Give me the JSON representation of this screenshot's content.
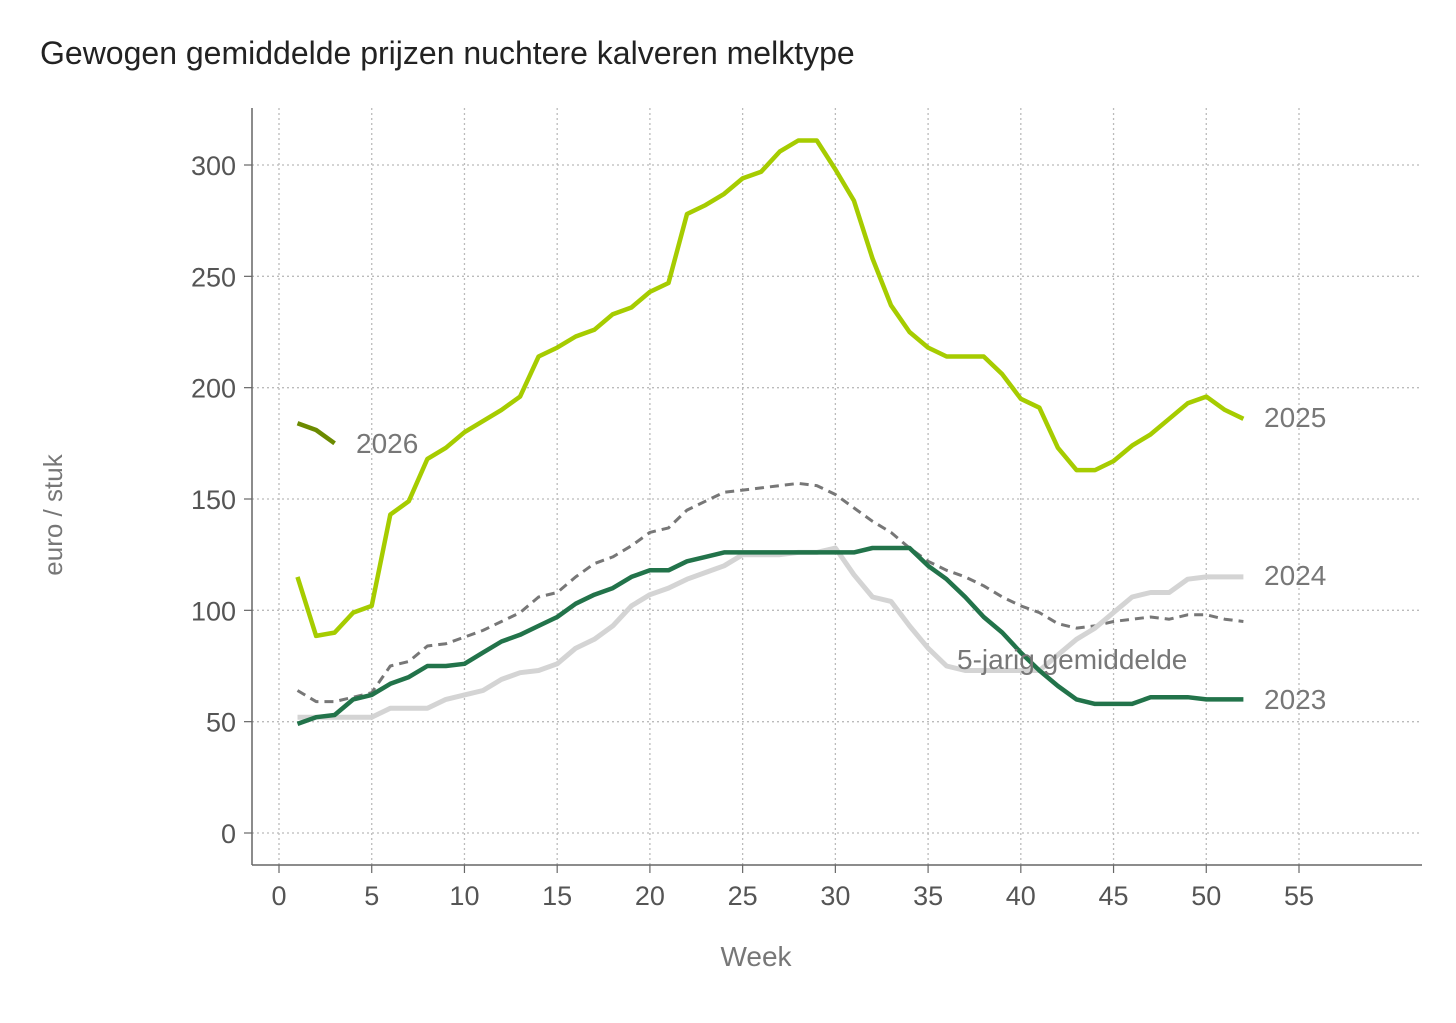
{
  "chart_data": {
    "type": "line",
    "title": "Gewogen gemiddelde prijzen nuchtere kalveren melktype",
    "xlabel": "Week",
    "ylabel": "euro / stuk",
    "xlim": [
      -1.5,
      62
    ],
    "ylim": [
      -15,
      326
    ],
    "xticks": [
      0,
      5,
      10,
      15,
      20,
      25,
      30,
      35,
      40,
      45,
      50,
      55
    ],
    "yticks": [
      0,
      50,
      100,
      150,
      200,
      250,
      300
    ],
    "grid": true,
    "legend": "direct labels at line ends",
    "series": [
      {
        "name": "5-jarig gemiddelde",
        "color": "#777777",
        "dashed": true,
        "width": 3,
        "x_start": 1,
        "values": [
          64,
          59,
          59,
          61,
          63,
          75,
          77,
          84,
          85,
          88,
          91,
          95,
          99,
          106,
          108,
          115,
          121,
          124,
          129,
          135,
          137,
          145,
          149,
          153,
          154,
          155,
          156,
          157,
          156,
          152,
          146,
          140,
          135,
          128,
          122,
          118,
          115,
          111,
          106,
          102,
          99,
          94,
          92,
          93,
          95,
          96,
          97,
          96,
          98,
          98,
          96,
          95
        ]
      },
      {
        "name": "2024",
        "color": "#d4d4d4",
        "dashed": false,
        "width": 5,
        "x_start": 1,
        "values": [
          52,
          52,
          52,
          52,
          52,
          56,
          56,
          56,
          60,
          62,
          64,
          69,
          72,
          73,
          76,
          83,
          87,
          93,
          102,
          107,
          110,
          114,
          117,
          120,
          125,
          125,
          125,
          126,
          126,
          128,
          116,
          106,
          104,
          93,
          83,
          75,
          73,
          73,
          73,
          73,
          73,
          80,
          87,
          92,
          99,
          106,
          108,
          108,
          114,
          115,
          115,
          115
        ]
      },
      {
        "name": "2023",
        "color": "#22734a",
        "dashed": false,
        "width": 4.5,
        "x_start": 1,
        "values": [
          49,
          52,
          53,
          60,
          62,
          67,
          70,
          75,
          75,
          76,
          81,
          86,
          89,
          93,
          97,
          103,
          107,
          110,
          115,
          118,
          118,
          122,
          124,
          126,
          126,
          126,
          126,
          126,
          126,
          126,
          126,
          128,
          128,
          128,
          120,
          114,
          106,
          97,
          90,
          81,
          73,
          66,
          60,
          58,
          58,
          58,
          61,
          61,
          61,
          60,
          60,
          60
        ]
      },
      {
        "name": "2025",
        "color": "#a6cc00",
        "dashed": false,
        "width": 4.5,
        "x_start": 1,
        "values": [
          115,
          88.5,
          90,
          99,
          102,
          143,
          149,
          168,
          173,
          180,
          185,
          190,
          196,
          214,
          218,
          223,
          226,
          233,
          236,
          243,
          247,
          278,
          282,
          287,
          294,
          297,
          306,
          311,
          311,
          298,
          284,
          258,
          237,
          225,
          218,
          214,
          214,
          214,
          206,
          195,
          191,
          173,
          163,
          163,
          167,
          174,
          179,
          186,
          193,
          196,
          190,
          186
        ]
      },
      {
        "name": "2026",
        "color": "#6b8a00",
        "dashed": false,
        "width": 4.5,
        "x_start": 1,
        "values": [
          184,
          181,
          175
        ]
      }
    ]
  }
}
